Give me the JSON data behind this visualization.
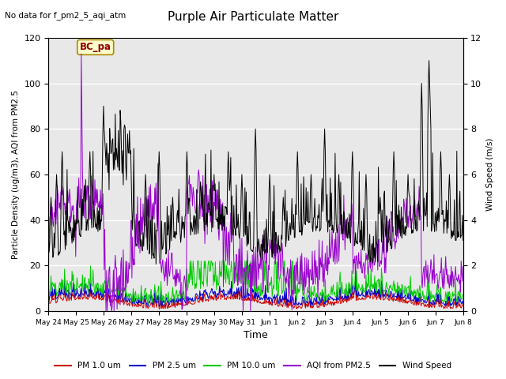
{
  "title": "Purple Air Particulate Matter",
  "subtitle": "No data for f_pm2_5_aqi_atm",
  "xlabel": "Time",
  "ylabel_left": "Particle Density (ug/m3), AQI from PM2.5",
  "ylabel_right": "Wind Speed (m/s)",
  "ylim_left": [
    0,
    120
  ],
  "ylim_right": [
    0,
    12
  ],
  "yticks_left": [
    0,
    20,
    40,
    60,
    80,
    100,
    120
  ],
  "yticks_right": [
    0,
    2,
    4,
    6,
    8,
    10,
    12
  ],
  "xtick_labels": [
    "May 24",
    "May 25",
    "May 26",
    "May 27",
    "May 28",
    "May 29",
    "May 30",
    "May 31",
    "Jun 1",
    "Jun 2",
    "Jun 3",
    "Jun 4",
    "Jun 5",
    "Jun 6",
    "Jun 7",
    "Jun 8"
  ],
  "legend_labels": [
    "PM 1.0 um",
    "PM 2.5 um",
    "PM 10.0 um",
    "AQI from PM2.5",
    "Wind Speed"
  ],
  "legend_colors": [
    "#cc0000",
    "#0000cc",
    "#00cc00",
    "#9900cc",
    "#000000"
  ],
  "bc_pa_label": "BC_pa",
  "bc_pa_color": "#ffffcc",
  "bc_pa_edge": "#aa8800",
  "bg_color": "#e8e8e8",
  "grid_color": "#ffffff",
  "n_points": 672
}
